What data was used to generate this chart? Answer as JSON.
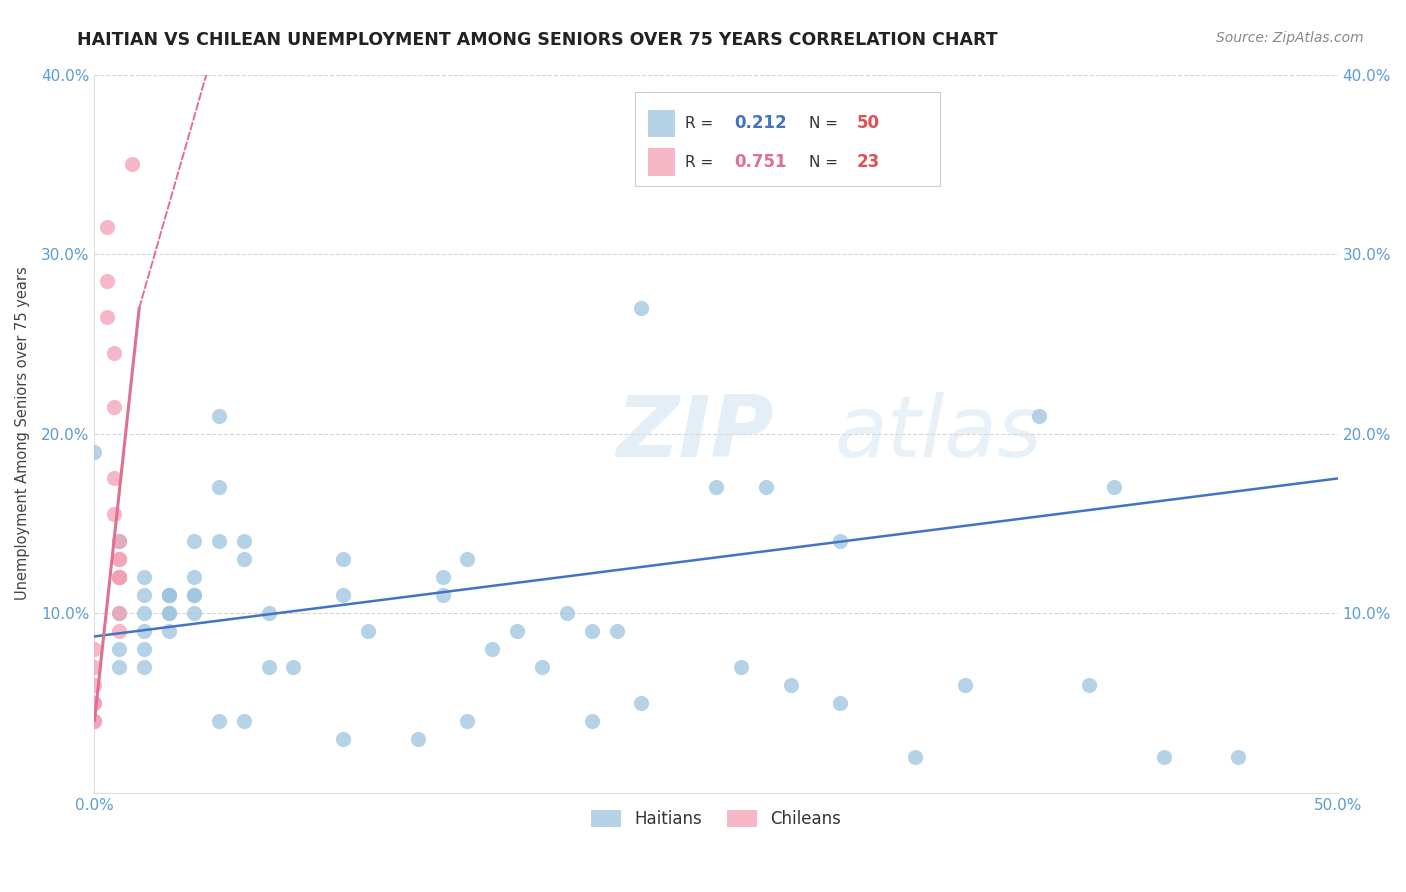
{
  "title": "HAITIAN VS CHILEAN UNEMPLOYMENT AMONG SENIORS OVER 75 YEARS CORRELATION CHART",
  "source": "Source: ZipAtlas.com",
  "ylabel": "Unemployment Among Seniors over 75 years",
  "xlim": [
    0.0,
    0.5
  ],
  "ylim": [
    0.0,
    0.4
  ],
  "xticks": [
    0.0,
    0.1,
    0.2,
    0.3,
    0.4,
    0.5
  ],
  "yticks": [
    0.0,
    0.1,
    0.2,
    0.3,
    0.4
  ],
  "xticklabels": [
    "0.0%",
    "",
    "",
    "",
    "",
    "50.0%"
  ],
  "yticklabels": [
    "",
    "10.0%",
    "20.0%",
    "30.0%",
    "40.0%"
  ],
  "right_yticklabels": [
    "",
    "10.0%",
    "20.0%",
    "30.0%",
    "40.0%"
  ],
  "background_color": "#ffffff",
  "grid_color": "#cccccc",
  "haitian_color": "#9ec4e0",
  "chilean_color": "#f4a0b5",
  "haitian_line_color": "#4472c4",
  "chilean_line_color": "#e07090",
  "tick_color": "#5b9bd5",
  "watermark_color": "#ddeeff",
  "haitian_scatter": [
    [
      0.0,
      0.19
    ],
    [
      0.01,
      0.1
    ],
    [
      0.01,
      0.07
    ],
    [
      0.01,
      0.12
    ],
    [
      0.01,
      0.08
    ],
    [
      0.01,
      0.14
    ],
    [
      0.02,
      0.1
    ],
    [
      0.02,
      0.12
    ],
    [
      0.02,
      0.11
    ],
    [
      0.02,
      0.09
    ],
    [
      0.02,
      0.08
    ],
    [
      0.02,
      0.07
    ],
    [
      0.03,
      0.1
    ],
    [
      0.03,
      0.11
    ],
    [
      0.03,
      0.1
    ],
    [
      0.03,
      0.09
    ],
    [
      0.03,
      0.11
    ],
    [
      0.03,
      0.11
    ],
    [
      0.04,
      0.14
    ],
    [
      0.04,
      0.12
    ],
    [
      0.04,
      0.11
    ],
    [
      0.04,
      0.11
    ],
    [
      0.04,
      0.1
    ],
    [
      0.05,
      0.21
    ],
    [
      0.05,
      0.17
    ],
    [
      0.05,
      0.14
    ],
    [
      0.06,
      0.14
    ],
    [
      0.06,
      0.13
    ],
    [
      0.07,
      0.1
    ],
    [
      0.07,
      0.07
    ],
    [
      0.08,
      0.07
    ],
    [
      0.1,
      0.13
    ],
    [
      0.1,
      0.11
    ],
    [
      0.11,
      0.09
    ],
    [
      0.14,
      0.12
    ],
    [
      0.14,
      0.11
    ],
    [
      0.15,
      0.13
    ],
    [
      0.16,
      0.08
    ],
    [
      0.17,
      0.09
    ],
    [
      0.19,
      0.1
    ],
    [
      0.2,
      0.09
    ],
    [
      0.21,
      0.09
    ],
    [
      0.22,
      0.27
    ],
    [
      0.25,
      0.17
    ],
    [
      0.27,
      0.17
    ],
    [
      0.3,
      0.14
    ],
    [
      0.38,
      0.21
    ],
    [
      0.41,
      0.17
    ],
    [
      0.05,
      0.04
    ],
    [
      0.06,
      0.04
    ],
    [
      0.1,
      0.03
    ],
    [
      0.13,
      0.03
    ],
    [
      0.15,
      0.04
    ],
    [
      0.18,
      0.07
    ],
    [
      0.2,
      0.04
    ],
    [
      0.22,
      0.05
    ],
    [
      0.26,
      0.07
    ],
    [
      0.28,
      0.06
    ],
    [
      0.3,
      0.05
    ],
    [
      0.33,
      0.02
    ],
    [
      0.35,
      0.06
    ],
    [
      0.4,
      0.06
    ],
    [
      0.43,
      0.02
    ],
    [
      0.46,
      0.02
    ]
  ],
  "chilean_scatter": [
    [
      0.0,
      0.08
    ],
    [
      0.0,
      0.06
    ],
    [
      0.0,
      0.05
    ],
    [
      0.0,
      0.05
    ],
    [
      0.0,
      0.04
    ],
    [
      0.0,
      0.04
    ],
    [
      0.0,
      0.07
    ],
    [
      0.005,
      0.285
    ],
    [
      0.005,
      0.315
    ],
    [
      0.005,
      0.265
    ],
    [
      0.008,
      0.245
    ],
    [
      0.008,
      0.215
    ],
    [
      0.008,
      0.175
    ],
    [
      0.008,
      0.155
    ],
    [
      0.01,
      0.14
    ],
    [
      0.01,
      0.13
    ],
    [
      0.01,
      0.13
    ],
    [
      0.01,
      0.12
    ],
    [
      0.01,
      0.12
    ],
    [
      0.01,
      0.12
    ],
    [
      0.01,
      0.1
    ],
    [
      0.01,
      0.09
    ],
    [
      0.015,
      0.35
    ]
  ],
  "haitian_line": [
    [
      0.0,
      0.087
    ],
    [
      0.5,
      0.175
    ]
  ],
  "chilean_line_solid": [
    [
      0.0,
      0.04
    ],
    [
      0.018,
      0.27
    ]
  ],
  "chilean_line_dashed": [
    [
      0.018,
      0.27
    ],
    [
      0.045,
      0.4
    ]
  ]
}
